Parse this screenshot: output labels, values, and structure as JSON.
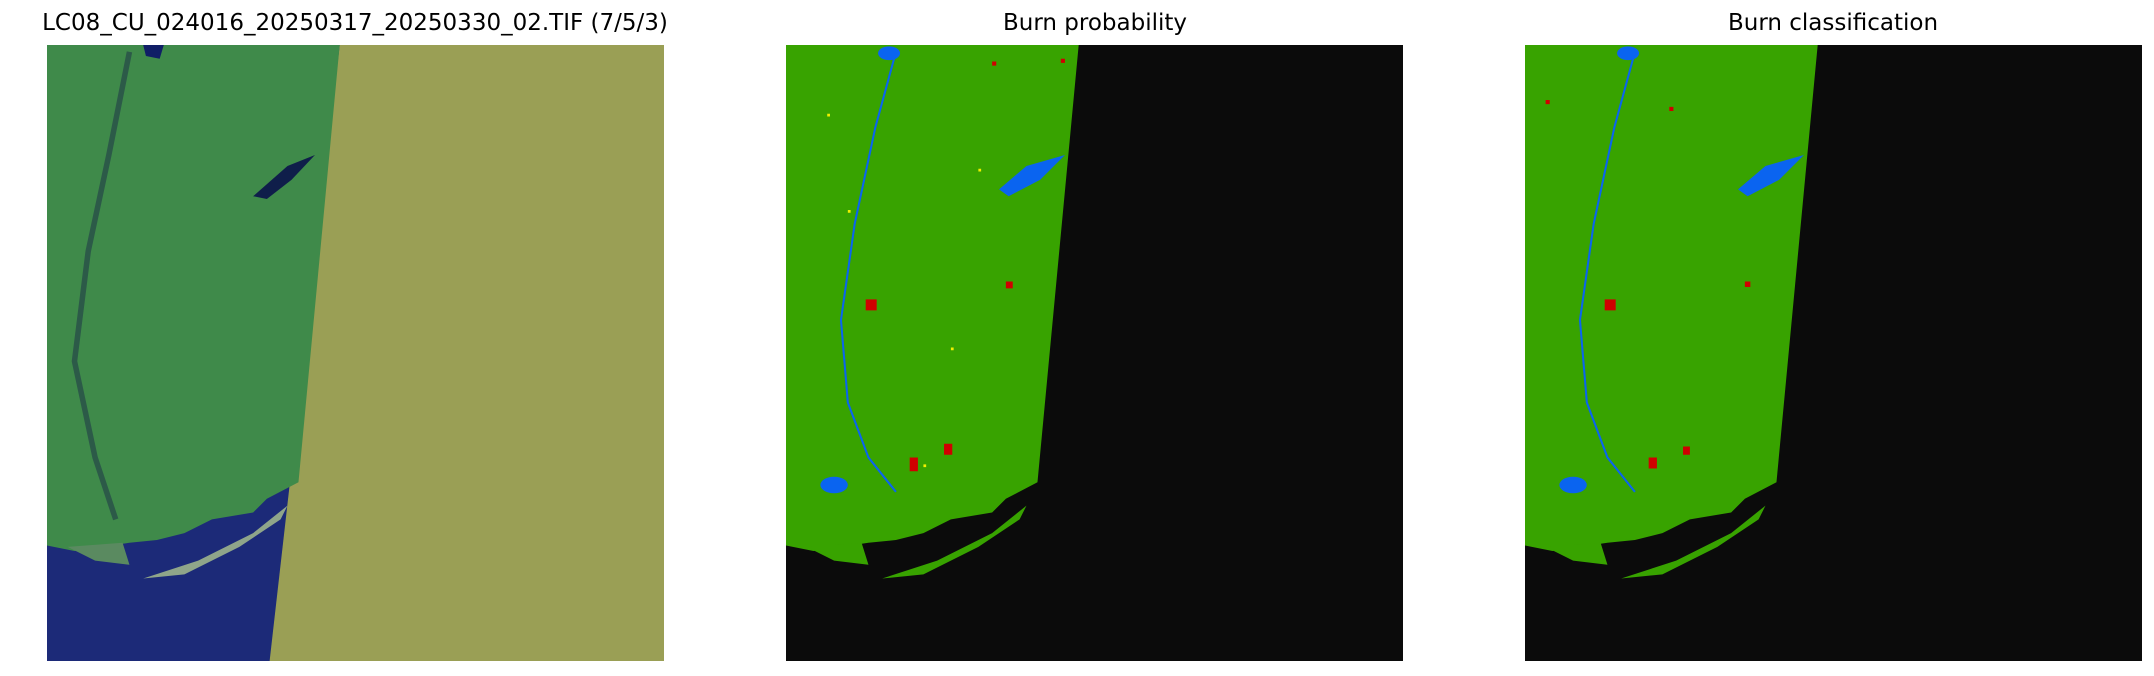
{
  "figure": {
    "panels": [
      {
        "title": "LC08_CU_024016_20250317_20250330_02.TIF (7/5/3)",
        "kind": "false-color-composite"
      },
      {
        "title": "Burn probability",
        "kind": "probability-map"
      },
      {
        "title": "Burn classification",
        "kind": "classification-map"
      }
    ]
  },
  "colors": {
    "nodata_rgb": "#9a9f55",
    "land_rgb": "#3f8a4a",
    "water_rgb": "#1c2a78",
    "unburned": "#38a300",
    "water": "#0a64f0",
    "nodata": "#0b0b0b",
    "burned": "#d00000",
    "probable": "#f0f000"
  }
}
